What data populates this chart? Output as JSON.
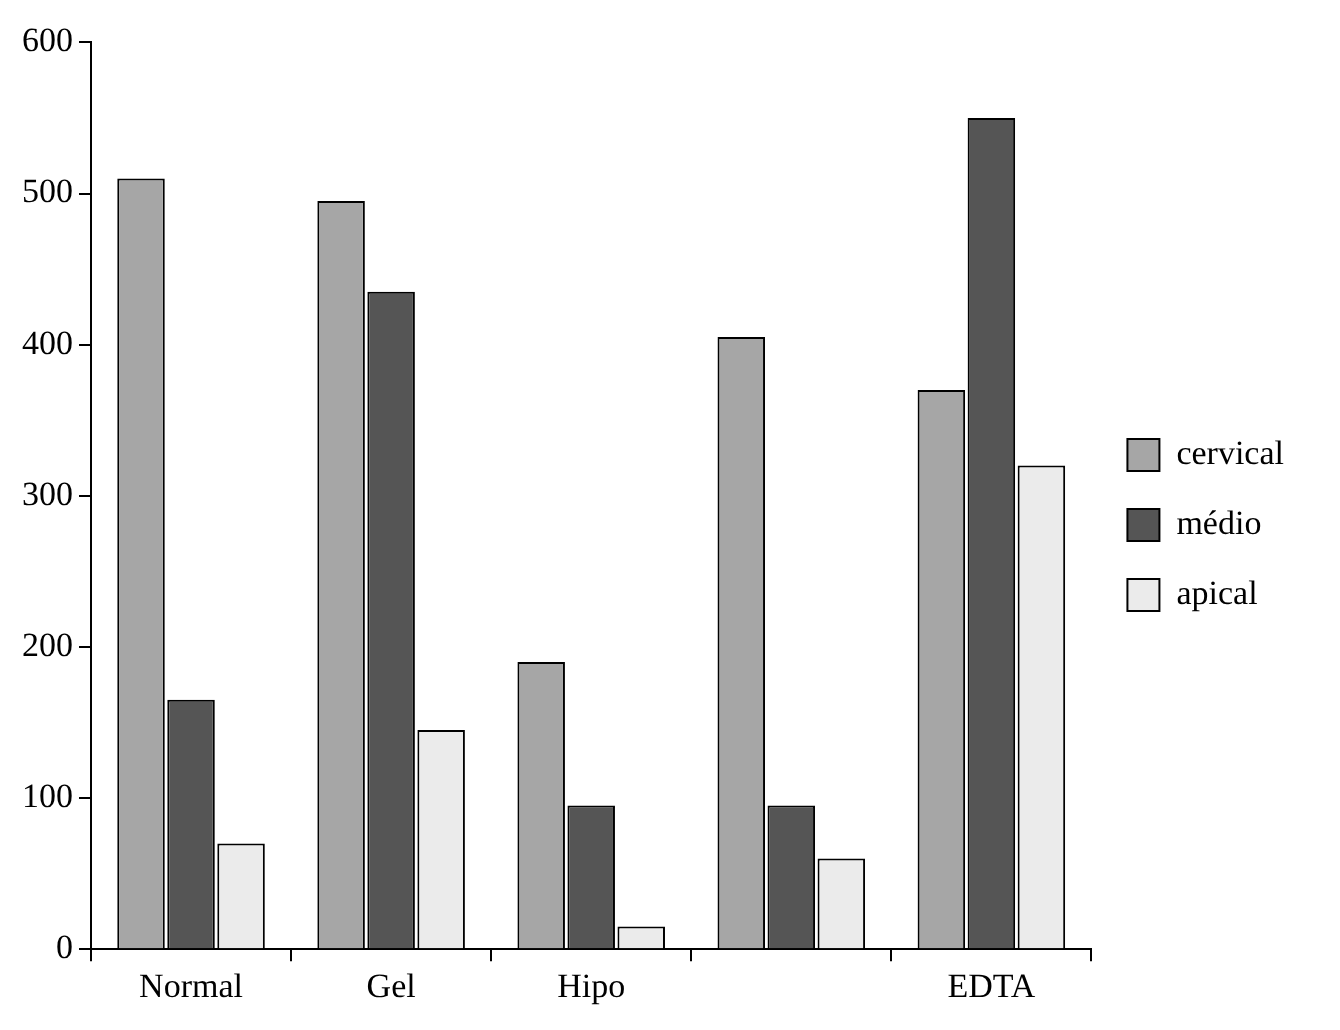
{
  "chart_data": {
    "type": "bar",
    "categories": [
      "Normal",
      "Gel",
      "Hipo",
      null,
      "EDTA"
    ],
    "series": [
      {
        "name": "cervical",
        "color": "#a6a6a6",
        "values": [
          510,
          495,
          190,
          405,
          370
        ]
      },
      {
        "name": "médio",
        "color": "#555555",
        "values": [
          165,
          435,
          95,
          95,
          550
        ]
      },
      {
        "name": "apical",
        "color": "#ebebeb",
        "values": [
          70,
          145,
          15,
          60,
          320
        ]
      }
    ],
    "ylim": [
      0,
      600
    ],
    "yticks": [
      0,
      100,
      200,
      300,
      400,
      500,
      600
    ],
    "grid": false,
    "legend": "right"
  }
}
